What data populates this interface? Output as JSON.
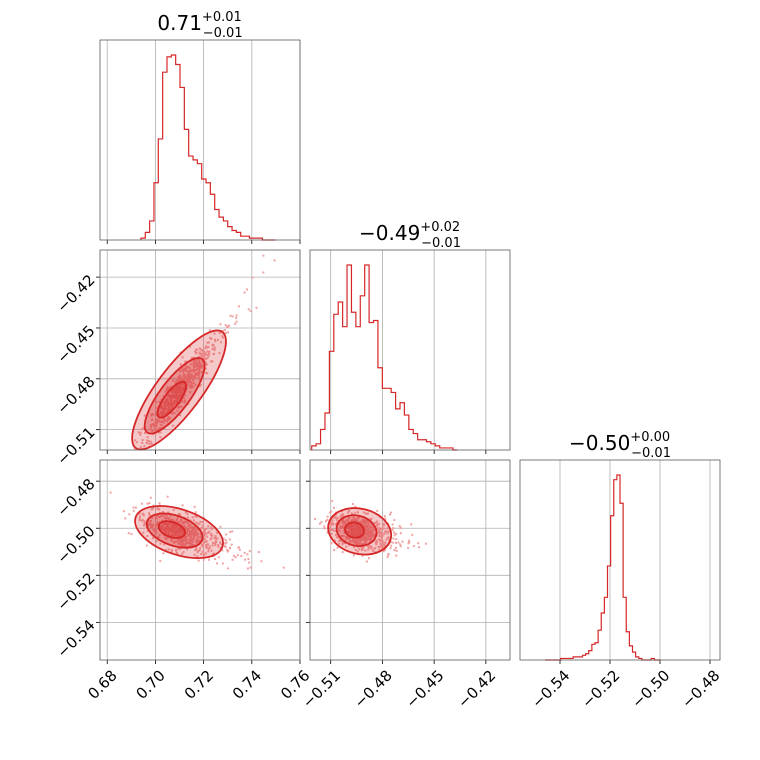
{
  "chart_data": [
    {
      "type": "histogram",
      "param": "p1",
      "title": {
        "value": "0.71",
        "plus": "+0.01",
        "minus": "−0.01"
      },
      "xlim": [
        0.677,
        0.76
      ],
      "xticks": [
        0.68,
        0.7,
        0.72,
        0.74,
        0.76
      ],
      "xticklabels": [
        "0.68",
        "0.70",
        "0.72",
        "0.74",
        "0.76"
      ],
      "bins_start": 0.694,
      "bin_width": 0.0018,
      "counts": [
        1,
        4,
        10,
        30,
        53,
        88,
        96,
        97,
        92,
        80,
        58,
        44,
        42,
        40,
        32,
        30,
        24,
        16,
        12,
        10,
        7,
        5,
        4,
        2,
        2,
        1,
        1,
        1,
        0,
        0,
        0
      ]
    },
    {
      "type": "histogram",
      "param": "p2",
      "title": {
        "value": "−0.49",
        "plus": "+0.02",
        "minus": "−0.01"
      },
      "xlim": [
        -0.522,
        -0.406
      ],
      "xticks": [
        -0.51,
        -0.48,
        -0.45,
        -0.42
      ],
      "xticklabels": [
        "−0.51",
        "−0.48",
        "−0.45",
        "−0.42"
      ],
      "bins_start": -0.521,
      "bin_width": 0.00256,
      "counts": [
        2,
        3,
        10,
        18,
        48,
        66,
        72,
        60,
        90,
        67,
        60,
        75,
        90,
        62,
        63,
        40,
        30,
        30,
        28,
        20,
        23,
        17,
        10,
        8,
        5,
        5,
        4,
        3,
        2,
        1,
        1,
        1,
        0
      ]
    },
    {
      "type": "histogram",
      "param": "p3",
      "title": {
        "value": "−0.50",
        "plus": "+0.00",
        "minus": "−0.01"
      },
      "xlim": [
        -0.556,
        -0.476
      ],
      "xticks": [
        -0.54,
        -0.52,
        -0.5,
        -0.48
      ],
      "xticklabels": [
        "−0.54",
        "−0.52",
        "−0.50",
        "−0.48"
      ],
      "bins_start": -0.546,
      "bin_width": 0.00125,
      "counts": [
        0,
        0,
        0,
        0,
        0,
        1,
        1,
        1,
        1,
        2,
        2,
        2,
        3,
        4,
        6,
        10,
        11,
        19,
        30,
        40,
        60,
        92,
        115,
        118,
        100,
        40,
        18,
        9,
        5,
        2,
        1,
        0,
        0,
        0,
        1,
        0,
        0
      ]
    },
    {
      "type": "scatter-contour",
      "params": [
        "p1",
        "p2"
      ],
      "xlim": [
        0.677,
        0.76
      ],
      "ylim": [
        -0.522,
        -0.404
      ],
      "yticks": [
        -0.42,
        -0.45,
        -0.48,
        -0.51
      ],
      "yticklabels": [
        "−0.42",
        "−0.45",
        "−0.48",
        "−0.51"
      ],
      "correlation": {
        "mean_x": 0.708,
        "mean_y": -0.49,
        "slope": 1.9,
        "spread": 0.0055
      }
    },
    {
      "type": "scatter-contour",
      "params": [
        "p1",
        "p3"
      ],
      "xlim": [
        0.677,
        0.76
      ],
      "ylim": [
        -0.556,
        -0.471
      ],
      "yticks": [
        -0.48,
        -0.5,
        -0.52,
        -0.54
      ],
      "yticklabels": [
        "−0.48",
        "−0.50",
        "−0.52",
        "−0.54"
      ],
      "correlation": {
        "mean_x": 0.708,
        "mean_y": -0.501,
        "slope": -0.35,
        "spread": 0.004
      }
    },
    {
      "type": "scatter-contour",
      "params": [
        "p2",
        "p3"
      ],
      "xlim": [
        -0.522,
        -0.406
      ],
      "ylim": [
        -0.556,
        -0.471
      ],
      "correlation": {
        "mean_x": -0.495,
        "mean_y": -0.501,
        "slope": -0.18,
        "spread": 0.004
      }
    }
  ],
  "colors": {
    "series": "#d62728",
    "points": "#f1a3a3",
    "grid": "#b0b0b0"
  }
}
